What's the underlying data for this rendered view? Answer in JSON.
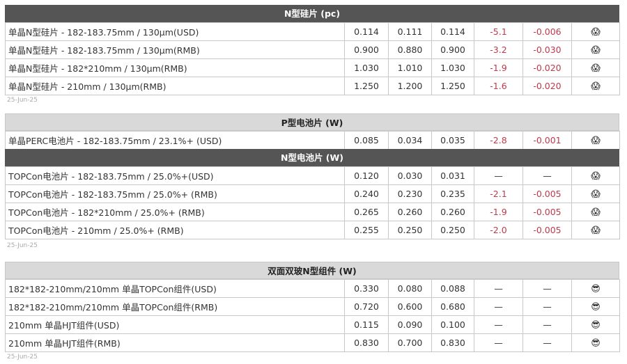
{
  "sections": [
    {
      "title": "N型硅片 (pc)",
      "style": "dark",
      "date": "25-Jun-25",
      "rows": [
        {
          "label": "单晶N型硅片 - 182-183.75mm / 130µm(USD)",
          "values": [
            "0.114",
            "0.111",
            "0.114",
            "-5.1",
            "-0.006"
          ],
          "icon": "fearful-face-icon"
        },
        {
          "label": "单晶N型硅片 - 182-183.75mm / 130µm(RMB)",
          "values": [
            "0.900",
            "0.880",
            "0.900",
            "-3.2",
            "-0.030"
          ],
          "icon": "fearful-face-icon"
        },
        {
          "label": "单晶N型硅片 - 182*210mm / 130µm(RMB)",
          "values": [
            "1.030",
            "1.010",
            "1.030",
            "-1.9",
            "-0.020"
          ],
          "icon": "fearful-face-icon"
        },
        {
          "label": "单晶N型硅片 - 210mm / 130µm(RMB)",
          "values": [
            "1.250",
            "1.200",
            "1.250",
            "-1.6",
            "-0.020"
          ],
          "icon": "fearful-face-icon"
        }
      ]
    },
    {
      "title": "P型电池片 (W)",
      "style": "light",
      "date": "",
      "rows": [
        {
          "label": "单晶PERC电池片 - 182-183.75mm / 23.1%+ (USD)",
          "values": [
            "0.085",
            "0.034",
            "0.035",
            "-2.8",
            "-0.001"
          ],
          "icon": "fearful-face-icon"
        }
      ]
    },
    {
      "title": "N型电池片 (W)",
      "style": "dark",
      "date": "25-Jun-25",
      "rows": [
        {
          "label": "TOPCon电池片 - 182-183.75mm / 25.0%+(USD)",
          "values": [
            "0.120",
            "0.030",
            "0.031",
            "—",
            "—"
          ],
          "icon": "fearful-face-icon"
        },
        {
          "label": "TOPCon电池片 - 182-183.75mm / 25.0%+ (RMB)",
          "values": [
            "0.240",
            "0.230",
            "0.235",
            "-2.1",
            "-0.005"
          ],
          "icon": "fearful-face-icon"
        },
        {
          "label": "TOPCon电池片 - 182*210mm / 25.0%+ (RMB)",
          "values": [
            "0.265",
            "0.260",
            "0.260",
            "-1.9",
            "-0.005"
          ],
          "icon": "fearful-face-icon"
        },
        {
          "label": "TOPCon电池片 - 210mm / 25.0%+ (RMB)",
          "values": [
            "0.255",
            "0.250",
            "0.250",
            "-2.0",
            "-0.005"
          ],
          "icon": "fearful-face-icon"
        }
      ]
    },
    {
      "title": "双面双玻N型组件 (W)",
      "style": "light",
      "date": "25-Jun-25",
      "rows": [
        {
          "label": "182*182-210mm/210mm 单晶TOPCon组件(USD)",
          "values": [
            "0.330",
            "0.080",
            "0.088",
            "—",
            "—"
          ],
          "icon": "sunglasses-face-icon"
        },
        {
          "label": "182*182-210mm/210mm 单晶TOPCon组件(RMB)",
          "values": [
            "0.720",
            "0.600",
            "0.680",
            "—",
            "—"
          ],
          "icon": "sunglasses-face-icon"
        },
        {
          "label": "210mm 单晶HJT组件(USD)",
          "values": [
            "0.115",
            "0.090",
            "0.100",
            "—",
            "—"
          ],
          "icon": "sunglasses-face-icon"
        },
        {
          "label": "210mm 单晶HJT组件(RMB)",
          "values": [
            "0.830",
            "0.700",
            "0.830",
            "—",
            "—"
          ],
          "icon": "sunglasses-face-icon"
        }
      ]
    }
  ],
  "colors": {
    "dark_header": "#555555",
    "light_header": "#d9d9d9",
    "negative": "#c0394b"
  }
}
